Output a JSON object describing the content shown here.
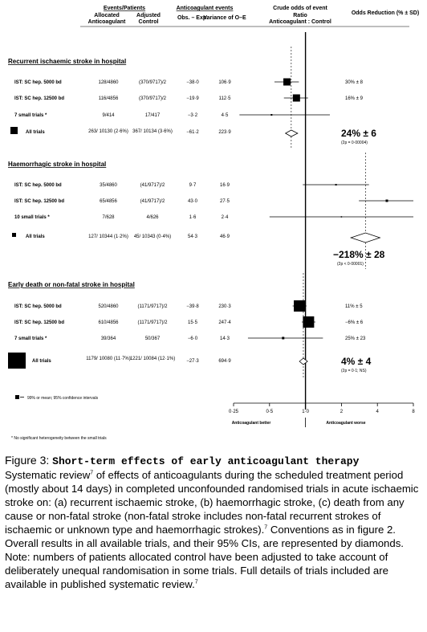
{
  "header": {
    "events_patients": "Events/Patients",
    "allocated": "Allocated",
    "anticoagulant": "Anticoagulant",
    "adjusted": "Adjusted",
    "control": "Control",
    "anticoag_events": "Anticoagulant events",
    "obs_exp": "Obs. – Exp.",
    "variance": "Variance of O–E",
    "crude_odds": "Crude odds of event",
    "ratio": "Ratio",
    "ratio_sub": "Anticoagulant : Control",
    "odds_reduction": "Odds Reduction (% ± SD)"
  },
  "sections": [
    {
      "title": "Recurrent ischaemic stroke in hospital",
      "rows": [
        {
          "label": "IST: SC hep. 5000 bd",
          "anticoag": "128/4860",
          "control": "(370/9717)/2",
          "oe": "−38·0",
          "var": "106·9",
          "reduction": "30% ± 8"
        },
        {
          "label": "IST: SC hep. 12500 bd",
          "anticoag": "116/4856",
          "control": "(370/9717)/2",
          "oe": "−19·9",
          "var": "112·5",
          "reduction": "16% ± 9"
        },
        {
          "label": "7 small trials *",
          "anticoag": "9/414",
          "control": "17/417",
          "oe": "−3·2",
          "var": "4·5",
          "reduction": ""
        }
      ],
      "total": {
        "label": "All trials",
        "anticoag": "263/ 10130 (2·6%)",
        "control": "367/ 10134 (3·6%)",
        "oe": "−61·2",
        "var": "223·9",
        "reduction": "24% ± 6",
        "p": "(2p = 0·00004)"
      }
    },
    {
      "title": "Haemorrhagic stroke in hospital",
      "rows": [
        {
          "label": "IST: SC hep. 5000 bd",
          "anticoag": "35/4860",
          "control": "(41/9717)/2",
          "oe": "9·7",
          "var": "16·9",
          "reduction": ""
        },
        {
          "label": "IST: SC hep. 12500 bd",
          "anticoag": "65/4856",
          "control": "(41/9717)/2",
          "oe": "43·0",
          "var": "27·5",
          "reduction": ""
        },
        {
          "label": "10 small trials *",
          "anticoag": "7/628",
          "control": "4/626",
          "oe": "1·6",
          "var": "2·4",
          "reduction": ""
        }
      ],
      "total": {
        "label": "All trials",
        "anticoag": "127/ 10344 (1·2%)",
        "control": "45/ 10343 (0·4%)",
        "oe": "54·3",
        "var": "46·9",
        "reduction": "−218% ± 28",
        "p": "(2p < 0·00001)"
      }
    },
    {
      "title": "Early death or non-fatal stroke in hospital",
      "rows": [
        {
          "label": "IST: SC hep. 5000 bd",
          "anticoag": "520/4860",
          "control": "(1171/9717)/2",
          "oe": "−39·8",
          "var": "230·3",
          "reduction": "11% ± 5"
        },
        {
          "label": "IST: SC hep. 12500 bd",
          "anticoag": "610/4856",
          "control": "(1171/9717)/2",
          "oe": "15·5",
          "var": "247·4",
          "reduction": "−6% ± 6"
        },
        {
          "label": "7 small trials *",
          "anticoag": "39/364",
          "control": "50/367",
          "oe": "−6·0",
          "var": "14·3",
          "reduction": "25% ± 23"
        }
      ],
      "total": {
        "label": "All trials",
        "anticoag": "1179/ 10080 (11·7%)",
        "control": "1221/ 10084 (12·1%)",
        "oe": "−27·3",
        "var": "694·9",
        "reduction": "4% ± 4",
        "p": "(2p = 0·1; NS)"
      }
    }
  ],
  "legend_text": "99% or   mean; 95% confidence intervals",
  "axis": {
    "ticks": [
      "0·25",
      "0·5",
      "1·0",
      "2",
      "4",
      "8"
    ],
    "label_left": "Anticoagulant better",
    "label_right": "Anticoagulant worse"
  },
  "footnote": "* No significant heterogeneity between the small trials",
  "caption": {
    "figure_label": "Figure 3:",
    "figure_title": "Short-term effects of early anticoagulant therapy",
    "t1": "Systematic review",
    "s1": "7",
    "t2": " of effects of anticoagulants during the scheduled treatment period (mostly about 14 days) in completed unconfounded randomised trials in acute ischaemic stroke on: (a) recurrent ischaemic stroke, (b) haemorrhagic stroke, (c) death from any cause or non-fatal stroke (non-fatal stroke includes non-fatal recurrent strokes of ischaemic or unknown type and haemorrhagic strokes).",
    "s2": "7",
    "t3": " Conventions as in figure 2. Overall results in all available trials, and their 95% CIs, are represented by diamonds. Note: numbers of patients allocated control have been adjusted to take account of deliberately unequal randomisation in some trials. Full details of trials included are available in published systematic review.",
    "s3": "7"
  },
  "chart_data": {
    "type": "forest",
    "x_scale": "log",
    "xlim": [
      0.25,
      8
    ],
    "x_ticks": [
      0.25,
      0.5,
      1,
      2,
      4,
      8
    ],
    "groups": [
      {
        "name": "Recurrent ischaemic stroke in hospital",
        "estimates": [
          {
            "label": "IST: SC hep. 5000 bd",
            "or": 0.7,
            "lo99": 0.55,
            "hi99": 0.88
          },
          {
            "label": "IST: SC hep. 12500 bd",
            "or": 0.84,
            "lo99": 0.66,
            "hi99": 1.05
          },
          {
            "label": "7 small trials *",
            "or": 0.52,
            "lo99": 0.28,
            "hi99": 1.6
          }
        ],
        "overall": {
          "or": 0.76,
          "lo95": 0.68,
          "hi95": 0.86
        }
      },
      {
        "name": "Haemorrhagic stroke in hospital",
        "estimates": [
          {
            "label": "IST: SC hep. 5000 bd",
            "or": 1.8,
            "lo99": 0.95,
            "hi99": 3.4
          },
          {
            "label": "IST: SC hep. 12500 bd",
            "or": 4.8,
            "lo99": 2.8,
            "hi99": 8
          },
          {
            "label": "10 small trials *",
            "or": 2.0,
            "lo99": 0.5,
            "hi99": 8
          }
        ],
        "overall": {
          "or": 3.18,
          "lo95": 2.4,
          "hi95": 4.2
        }
      },
      {
        "name": "Early death or non-fatal stroke in hospital",
        "estimates": [
          {
            "label": "IST: SC hep. 5000 bd",
            "or": 0.89,
            "lo99": 0.78,
            "hi99": 1.02
          },
          {
            "label": "IST: SC hep. 12500 bd",
            "or": 1.06,
            "lo99": 0.93,
            "hi99": 1.21
          },
          {
            "label": "7 small trials *",
            "or": 0.65,
            "lo99": 0.33,
            "hi99": 1.4
          }
        ],
        "overall": {
          "or": 0.96,
          "lo95": 0.89,
          "hi95": 1.04
        }
      }
    ]
  }
}
